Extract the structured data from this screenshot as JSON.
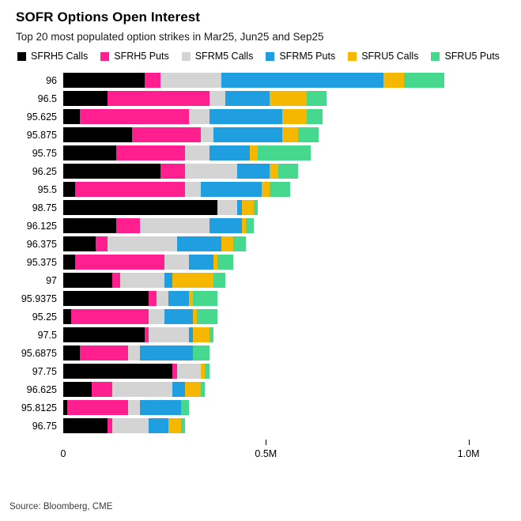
{
  "source": "Source: Bloomberg, CME",
  "chart_data": {
    "type": "bar",
    "orientation": "horizontal",
    "stacked": true,
    "title": "SOFR Options Open Interest",
    "subtitle": "Top 20 most populated option strikes in Mar25, Jun25 and Sep25",
    "legend_position": "top",
    "grid": false,
    "unit": "M contracts",
    "categories": [
      "96",
      "96.5",
      "95.625",
      "95.875",
      "95.75",
      "96.25",
      "95.5",
      "98.75",
      "96.125",
      "96.375",
      "95.375",
      "97",
      "95.9375",
      "95.25",
      "97.5",
      "95.6875",
      "97.75",
      "96.625",
      "95.8125",
      "96.75"
    ],
    "series": [
      {
        "name": "SFRH5 Calls",
        "color": "#000000",
        "values": [
          0.2,
          0.11,
          0.04,
          0.17,
          0.13,
          0.24,
          0.03,
          0.38,
          0.13,
          0.08,
          0.03,
          0.12,
          0.21,
          0.02,
          0.2,
          0.04,
          0.27,
          0.07,
          0.01,
          0.11
        ]
      },
      {
        "name": "SFRH5 Puts",
        "color": "#ff1f8f",
        "values": [
          0.04,
          0.25,
          0.27,
          0.17,
          0.17,
          0.06,
          0.27,
          0.0,
          0.06,
          0.03,
          0.22,
          0.02,
          0.02,
          0.19,
          0.01,
          0.12,
          0.01,
          0.05,
          0.15,
          0.01
        ]
      },
      {
        "name": "SFRM5 Calls",
        "color": "#d4d4d4",
        "values": [
          0.15,
          0.04,
          0.05,
          0.03,
          0.06,
          0.13,
          0.04,
          0.05,
          0.17,
          0.17,
          0.06,
          0.11,
          0.03,
          0.04,
          0.1,
          0.03,
          0.06,
          0.15,
          0.03,
          0.09
        ]
      },
      {
        "name": "SFRM5 Puts",
        "color": "#1f9fe0",
        "values": [
          0.4,
          0.11,
          0.18,
          0.17,
          0.1,
          0.08,
          0.15,
          0.01,
          0.08,
          0.11,
          0.06,
          0.02,
          0.05,
          0.07,
          0.01,
          0.13,
          0.0,
          0.03,
          0.1,
          0.05
        ]
      },
      {
        "name": "SFRU5 Calls",
        "color": "#f5b700",
        "values": [
          0.05,
          0.09,
          0.06,
          0.04,
          0.02,
          0.02,
          0.02,
          0.03,
          0.01,
          0.03,
          0.01,
          0.1,
          0.01,
          0.01,
          0.04,
          0.0,
          0.01,
          0.04,
          0.0,
          0.03
        ]
      },
      {
        "name": "SFRU5 Puts",
        "color": "#46d98d",
        "values": [
          0.1,
          0.05,
          0.04,
          0.05,
          0.13,
          0.05,
          0.05,
          0.01,
          0.02,
          0.03,
          0.04,
          0.03,
          0.06,
          0.05,
          0.01,
          0.04,
          0.01,
          0.01,
          0.02,
          0.01
        ]
      }
    ],
    "xlim": [
      0,
      1.11
    ],
    "x_ticks": [
      {
        "value": 0,
        "label": "0"
      },
      {
        "value": 0.5,
        "label": "0.5M"
      },
      {
        "value": 1.0,
        "label": "1.0M"
      }
    ]
  }
}
